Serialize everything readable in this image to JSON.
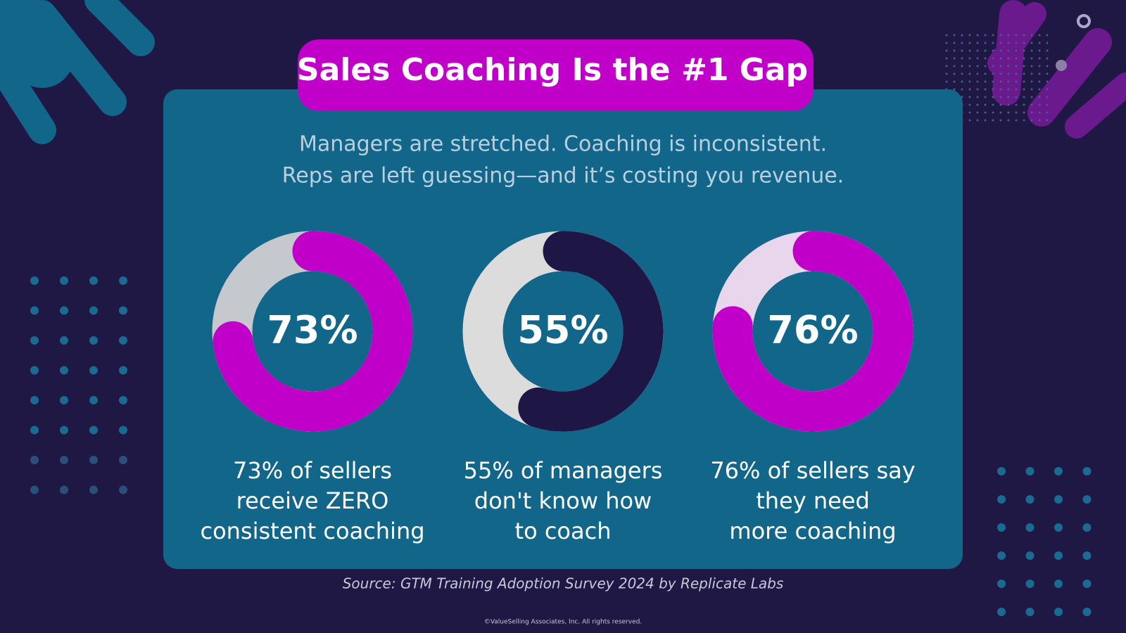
{
  "title": "Sales Coaching Is the #1 Gap",
  "subtitle": [
    "Managers are stretched. Coaching is inconsistent.",
    "Reps are left guessing—and it’s costing you revenue."
  ],
  "chart_data": [
    {
      "type": "donut",
      "values": [
        73
      ],
      "value_labels": [
        "73%"
      ],
      "color": "#c000c8",
      "track_color": "#c5c8cc",
      "caption": [
        "73% of sellers",
        "receive ZERO",
        "consistent coaching"
      ]
    },
    {
      "type": "donut",
      "values": [
        55
      ],
      "value_labels": [
        "55%"
      ],
      "color": "#1e1745",
      "track_color": "#dcdcdc",
      "caption": [
        "55% of managers",
        "don't know how",
        "to coach"
      ]
    },
    {
      "type": "donut",
      "values": [
        76
      ],
      "value_labels": [
        "76%"
      ],
      "color": "#c000c8",
      "track_color": "#e7d6ec",
      "caption": [
        "76% of sellers say",
        "they need",
        "more coaching"
      ]
    }
  ],
  "source": "Source: GTM Training Adoption Survey 2024 by Replicate Labs",
  "copyright": "©ValueSelling Associates, Inc. All rights reserved."
}
